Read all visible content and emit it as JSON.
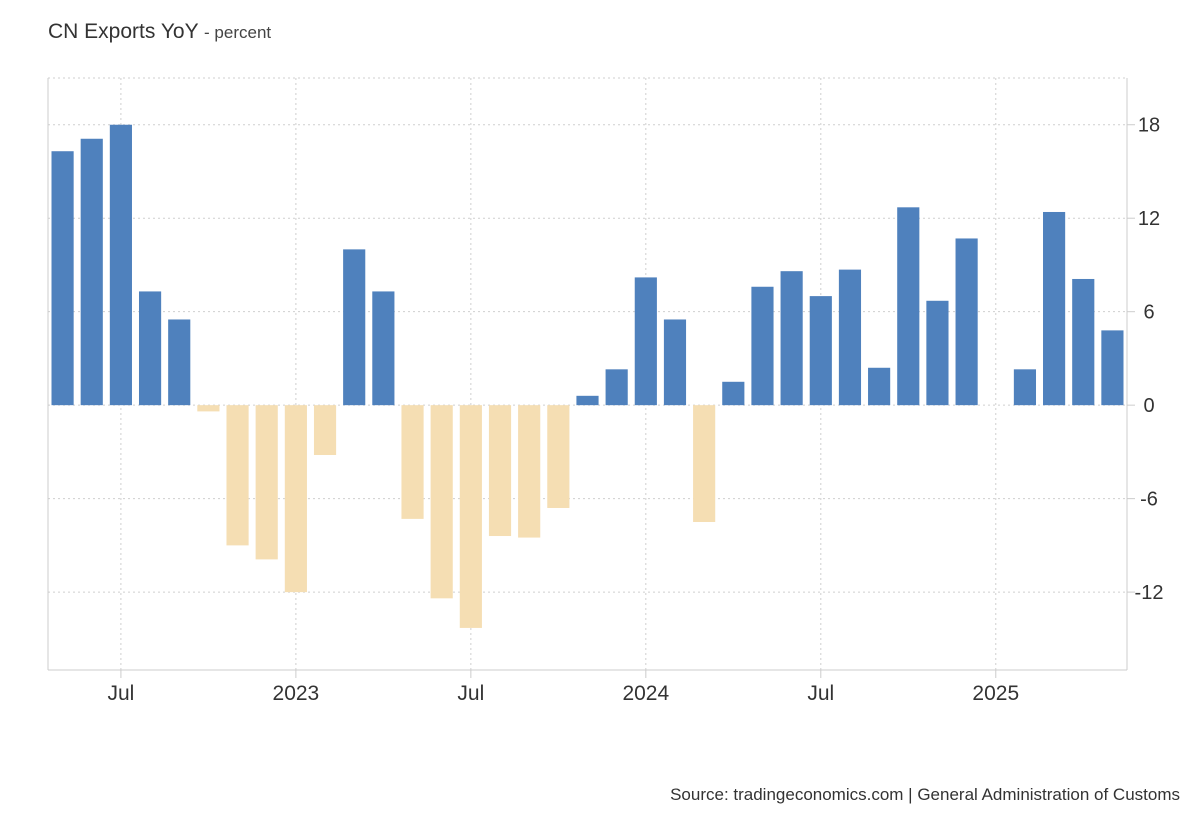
{
  "chart_data": {
    "type": "bar",
    "title": "CN Exports YoY",
    "subtitle": "- percent",
    "source": "Source: tradingeconomics.com | General Administration of Customs",
    "ylim": [
      -17,
      21
    ],
    "yticks": [
      18,
      12,
      6,
      0,
      -6,
      -12
    ],
    "xticks": [
      {
        "label": "Jul",
        "at": "2022-07"
      },
      {
        "label": "2023",
        "at": "2023-01"
      },
      {
        "label": "Jul",
        "at": "2023-07"
      },
      {
        "label": "2024",
        "at": "2024-01"
      },
      {
        "label": "Jul",
        "at": "2024-07"
      },
      {
        "label": "2025",
        "at": "2025-01"
      }
    ],
    "grid": true,
    "colors": {
      "positive": "#4f81bd",
      "negative": "#f5deb3"
    },
    "categories": [
      "2022-05",
      "2022-06",
      "2022-07",
      "2022-08",
      "2022-09",
      "2022-10",
      "2022-11",
      "2022-12",
      "2023-01",
      "2023-02",
      "2023-03",
      "2023-04",
      "2023-05",
      "2023-06",
      "2023-07",
      "2023-08",
      "2023-09",
      "2023-10",
      "2023-11",
      "2023-12",
      "2024-01",
      "2024-02",
      "2024-03",
      "2024-04",
      "2024-05",
      "2024-06",
      "2024-07",
      "2024-08",
      "2024-09",
      "2024-10",
      "2024-11",
      "2024-12",
      "2025-01",
      "2025-02",
      "2025-03",
      "2025-04",
      "2025-05"
    ],
    "values": [
      16.3,
      17.1,
      18.0,
      7.3,
      5.5,
      -0.4,
      -9.0,
      -9.9,
      -12.0,
      -3.2,
      10.0,
      7.3,
      -7.3,
      -12.4,
      -14.3,
      -8.4,
      -8.5,
      -6.6,
      0.6,
      2.3,
      8.2,
      5.5,
      -7.5,
      1.5,
      7.6,
      8.6,
      7.0,
      8.7,
      2.4,
      12.7,
      6.7,
      10.7,
      0,
      2.3,
      12.4,
      8.1,
      4.8
    ]
  }
}
